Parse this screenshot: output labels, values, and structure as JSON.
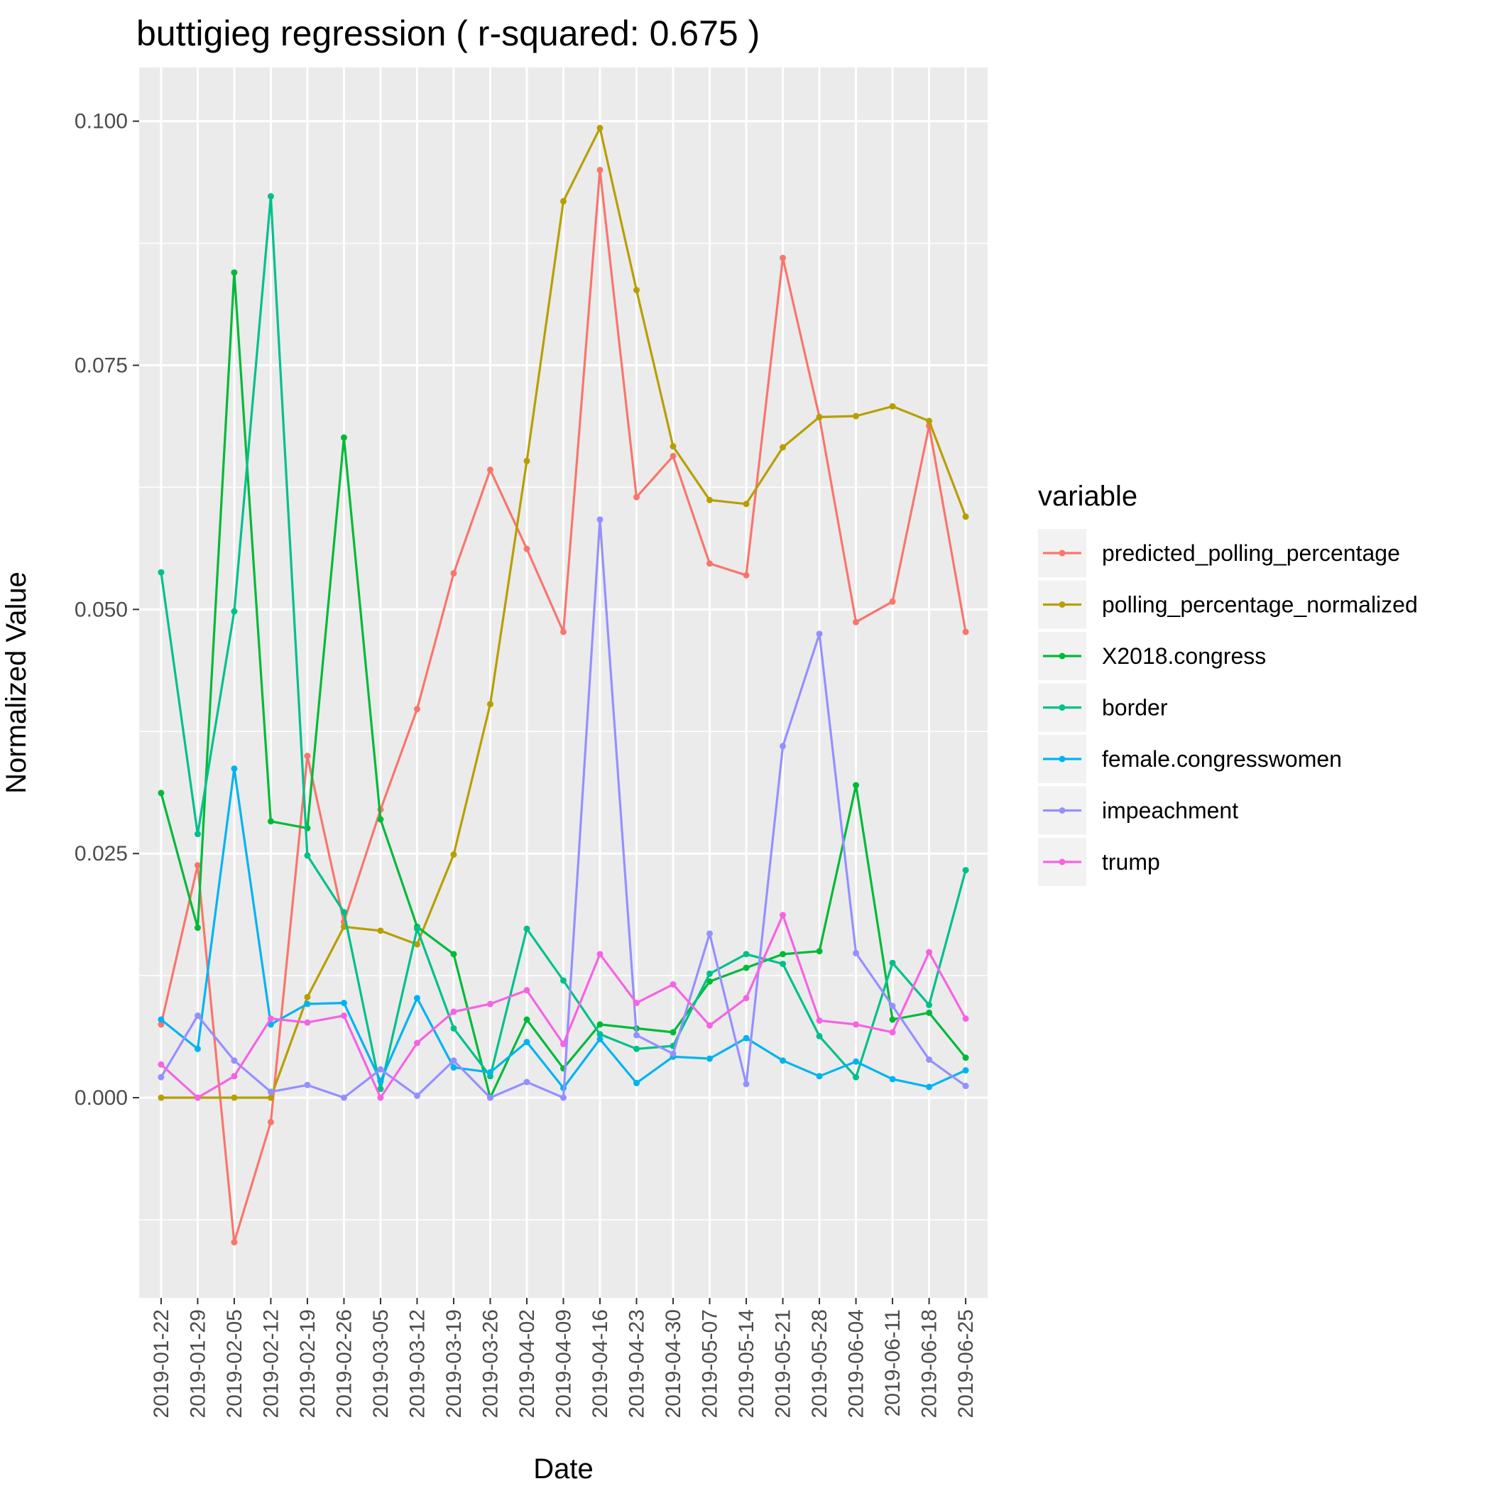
{
  "chart_data": {
    "type": "line",
    "title": "buttigieg regression ( r-squared: 0.675 )",
    "xlabel": "Date",
    "ylabel": "Normalized Value",
    "ylim": [
      -0.0205,
      0.1055
    ],
    "y_ticks": [
      {
        "value": 0.0,
        "label": "0.000"
      },
      {
        "value": 0.025,
        "label": "0.025"
      },
      {
        "value": 0.05,
        "label": "0.050"
      },
      {
        "value": 0.075,
        "label": "0.075"
      },
      {
        "value": 0.1,
        "label": "0.100"
      }
    ],
    "y_minor_ticks": [
      -0.0125,
      0.0125,
      0.0375,
      0.0625,
      0.0875
    ],
    "grid": true,
    "legend_position": "right",
    "legend_title": "variable",
    "categories": [
      "2019-01-22",
      "2019-01-29",
      "2019-02-05",
      "2019-02-12",
      "2019-02-19",
      "2019-02-26",
      "2019-03-05",
      "2019-03-12",
      "2019-03-19",
      "2019-03-26",
      "2019-04-02",
      "2019-04-09",
      "2019-04-16",
      "2019-04-23",
      "2019-04-30",
      "2019-05-07",
      "2019-05-14",
      "2019-05-21",
      "2019-05-28",
      "2019-06-04",
      "2019-06-11",
      "2019-06-18",
      "2019-06-25"
    ],
    "series": [
      {
        "name": "predicted_polling_percentage",
        "color": "#F8766D",
        "values": [
          0.0075,
          0.0238,
          -0.0148,
          -0.0025,
          0.035,
          0.018,
          0.0295,
          0.0398,
          0.0537,
          0.0643,
          0.0562,
          0.0477,
          0.095,
          0.0615,
          0.0657,
          0.0547,
          0.0535,
          0.086,
          0.0697,
          0.0487,
          0.0508,
          0.0688,
          0.0477
        ]
      },
      {
        "name": "polling_percentage_normalized",
        "color": "#B79F00",
        "values": [
          0.0,
          0.0,
          0.0,
          0.0,
          0.0103,
          0.0175,
          0.0171,
          0.0157,
          0.0249,
          0.0403,
          0.0652,
          0.0918,
          0.0993,
          0.0827,
          0.0667,
          0.0612,
          0.0608,
          0.0666,
          0.0697,
          0.0698,
          0.0708,
          0.0693,
          0.0595
        ]
      },
      {
        "name": "X2018.congress",
        "color": "#00BA38",
        "values": [
          0.0312,
          0.0174,
          0.0845,
          0.0283,
          0.0276,
          0.0676,
          0.0285,
          0.0175,
          0.0147,
          0.0,
          0.008,
          0.003,
          0.0075,
          0.0071,
          0.0067,
          0.0119,
          0.0133,
          0.0147,
          0.015,
          0.032,
          0.008,
          0.0087,
          0.0041
        ]
      },
      {
        "name": "border",
        "color": "#00C08B",
        "values": [
          0.0538,
          0.027,
          0.0498,
          0.0923,
          0.0248,
          0.019,
          0.0009,
          0.0173,
          0.0071,
          0.0022,
          0.0173,
          0.012,
          0.0065,
          0.005,
          0.0053,
          0.0127,
          0.0147,
          0.0137,
          0.0063,
          0.0021,
          0.0138,
          0.0095,
          0.0233
        ]
      },
      {
        "name": "female.congresswomen",
        "color": "#00B4F0",
        "values": [
          0.008,
          0.005,
          0.0337,
          0.0075,
          0.0096,
          0.0097,
          0.0017,
          0.0102,
          0.0031,
          0.0026,
          0.0057,
          0.001,
          0.006,
          0.0015,
          0.0042,
          0.004,
          0.0061,
          0.0038,
          0.0022,
          0.0037,
          0.0019,
          0.0011,
          0.0028
        ]
      },
      {
        "name": "impeachment",
        "color": "#9590FF",
        "values": [
          0.0021,
          0.0084,
          0.0038,
          0.0006,
          0.0013,
          0.0,
          0.0029,
          0.0002,
          0.0038,
          0.0,
          0.0016,
          0.0,
          0.0592,
          0.0064,
          0.0045,
          0.0168,
          0.0014,
          0.036,
          0.0475,
          0.0148,
          0.0094,
          0.0039,
          0.0012
        ]
      },
      {
        "name": "trump",
        "color": "#F564E3",
        "values": [
          0.0034,
          0.0,
          0.0022,
          0.0081,
          0.0077,
          0.0084,
          0.0,
          0.0056,
          0.0088,
          0.0096,
          0.011,
          0.0055,
          0.0147,
          0.0097,
          0.0116,
          0.0074,
          0.0102,
          0.0187,
          0.0079,
          0.0075,
          0.0067,
          0.0149,
          0.0081
        ]
      }
    ]
  }
}
